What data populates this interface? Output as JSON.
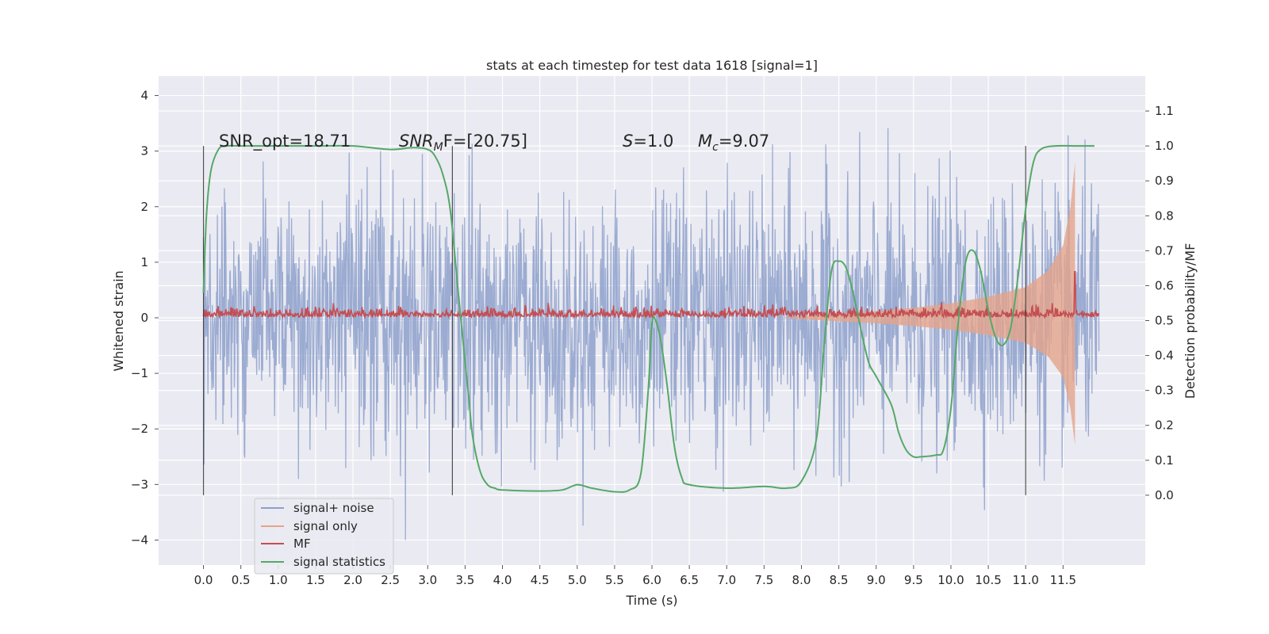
{
  "chart_data": {
    "type": "line",
    "title": "stats at each timestep for test data 1618 [signal=1]",
    "xlabel": "Time (s)",
    "ylabel": "Whitened strain",
    "ylabel_right": "Detection probability/MF",
    "xlim": [
      -0.6,
      12.6
    ],
    "ylim": [
      -4.45,
      4.35
    ],
    "ylim_right": [
      -0.2,
      1.2
    ],
    "x_ticks": [
      "0.0",
      "0.5",
      "1.0",
      "1.5",
      "2.0",
      "2.5",
      "3.0",
      "3.5",
      "4.0",
      "4.5",
      "5.0",
      "5.5",
      "6.0",
      "6.5",
      "7.0",
      "7.5",
      "8.0",
      "8.5",
      "9.0",
      "9.5",
      "10.0",
      "10.5",
      "11.0",
      "11.5"
    ],
    "y_ticks": [
      "4",
      "3",
      "2",
      "1",
      "0",
      "−1",
      "−2",
      "−3",
      "−4"
    ],
    "y_ticks_right": [
      "1.1",
      "1.0",
      "0.9",
      "0.8",
      "0.7",
      "0.6",
      "0.5",
      "0.4",
      "0.3",
      "0.2",
      "0.1",
      "0.0"
    ],
    "grid": true,
    "legend_position": "lower-left",
    "annotations": {
      "snr_opt": "SNR_opt=18.71",
      "snr_mf_main": "SNR",
      "snr_mf_sub": "M",
      "snr_mf_rest": "F=[20.75]",
      "s_main": "S",
      "s_rest": "=1.0",
      "mc_main": "M",
      "mc_sub": "c",
      "mc_rest": "=9.07"
    },
    "vertical_lines_x": [
      0.0,
      3.33,
      11.0
    ],
    "series": [
      {
        "name": "signal+ noise",
        "color": "#8da0cb",
        "noise_std": 1.15,
        "x_range": [
          0.0,
          11.98
        ]
      },
      {
        "name": "signal only",
        "color": "#e5a48b",
        "envelope_x": [
          7.7,
          8.5,
          9.0,
          9.5,
          10.0,
          10.5,
          11.0,
          11.3,
          11.5,
          11.6,
          11.66
        ],
        "envelope_y": [
          0.0,
          0.08,
          0.12,
          0.18,
          0.26,
          0.38,
          0.55,
          0.85,
          1.3,
          2.0,
          2.8
        ]
      },
      {
        "name": "MF",
        "color": "#c44e52",
        "level": 0.51,
        "peak_x": 11.66,
        "peak_value": 0.64
      },
      {
        "name": "signal statistics",
        "color": "#55a868",
        "x": [
          0.0,
          0.04,
          0.1,
          0.2,
          0.3,
          0.5,
          1.0,
          1.5,
          2.0,
          2.5,
          2.8,
          3.0,
          3.1,
          3.2,
          3.3,
          3.4,
          3.5,
          3.55,
          3.6,
          3.7,
          3.8,
          3.9,
          4.0,
          4.5,
          4.8,
          5.0,
          5.2,
          5.5,
          5.7,
          5.85,
          5.95,
          6.0,
          6.05,
          6.12,
          6.2,
          6.3,
          6.4,
          6.5,
          7.0,
          7.5,
          7.8,
          8.0,
          8.2,
          8.3,
          8.4,
          8.5,
          8.6,
          8.7,
          8.8,
          8.9,
          9.0,
          9.2,
          9.3,
          9.4,
          9.5,
          9.6,
          9.8,
          9.9,
          10.0,
          10.1,
          10.2,
          10.3,
          10.4,
          10.5,
          10.6,
          10.7,
          10.8,
          10.9,
          11.0,
          11.1,
          11.2,
          11.4,
          11.7,
          11.92
        ],
        "y": [
          0.58,
          0.8,
          0.93,
          0.99,
          1.0,
          1.0,
          1.0,
          1.0,
          1.0,
          0.99,
          0.995,
          0.99,
          0.97,
          0.92,
          0.82,
          0.6,
          0.38,
          0.28,
          0.17,
          0.07,
          0.03,
          0.02,
          0.015,
          0.012,
          0.015,
          0.03,
          0.02,
          0.01,
          0.015,
          0.06,
          0.3,
          0.49,
          0.5,
          0.44,
          0.32,
          0.14,
          0.05,
          0.03,
          0.02,
          0.025,
          0.02,
          0.04,
          0.16,
          0.42,
          0.64,
          0.67,
          0.65,
          0.57,
          0.47,
          0.38,
          0.34,
          0.26,
          0.18,
          0.13,
          0.11,
          0.11,
          0.115,
          0.13,
          0.25,
          0.5,
          0.67,
          0.7,
          0.64,
          0.53,
          0.45,
          0.43,
          0.48,
          0.63,
          0.82,
          0.95,
          0.99,
          1.0,
          1.0,
          1.0
        ]
      }
    ]
  }
}
